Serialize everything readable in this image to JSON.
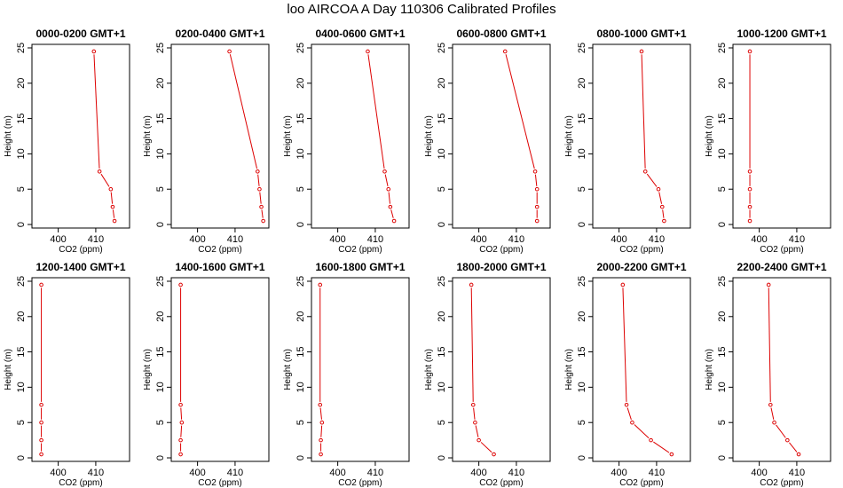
{
  "title": "loo AIRCOA A  Day 110306  Calibrated Profiles",
  "colors": {
    "series": "#dd0000",
    "axis": "#000000"
  },
  "chart_data": {
    "type": "line",
    "layout": "2 rows x 6 columns",
    "xlabel": "CO2 (ppm)",
    "ylabel": "Height (m)",
    "xlim": [
      393,
      419
    ],
    "ylim": [
      -0.5,
      25.5
    ],
    "x_ticks": [
      400,
      410
    ],
    "y_ticks": [
      0,
      5,
      10,
      15,
      20,
      25
    ],
    "heights": [
      0.5,
      2.5,
      5,
      7.5,
      24.5
    ],
    "panels": [
      {
        "title": "0000-0200 GMT+1",
        "x": [
          415.0,
          414.5,
          414.0,
          411.0,
          409.5
        ]
      },
      {
        "title": "0200-0400 GMT+1",
        "x": [
          417.5,
          417.0,
          416.5,
          416.0,
          408.5
        ]
      },
      {
        "title": "0400-0600 GMT+1",
        "x": [
          415.0,
          414.0,
          413.5,
          412.5,
          408.0
        ]
      },
      {
        "title": "0600-0800 GMT+1",
        "x": [
          415.5,
          415.5,
          415.5,
          415.0,
          407.0
        ]
      },
      {
        "title": "0800-1000 GMT+1",
        "x": [
          412.0,
          411.5,
          410.5,
          407.0,
          406.0
        ]
      },
      {
        "title": "1000-1200 GMT+1",
        "x": [
          397.5,
          397.5,
          397.5,
          397.5,
          397.5
        ]
      },
      {
        "title": "1200-1400 GMT+1",
        "x": [
          395.5,
          395.5,
          395.5,
          395.5,
          395.5
        ]
      },
      {
        "title": "1400-1600 GMT+1",
        "x": [
          395.5,
          395.5,
          395.8,
          395.5,
          395.5
        ]
      },
      {
        "title": "1600-1800 GMT+1",
        "x": [
          395.5,
          395.5,
          395.8,
          395.3,
          395.3
        ]
      },
      {
        "title": "1800-2000 GMT+1",
        "x": [
          404.0,
          400.0,
          399.0,
          398.5,
          398.0
        ]
      },
      {
        "title": "2000-2200 GMT+1",
        "x": [
          414.0,
          408.5,
          403.5,
          402.0,
          401.0
        ]
      },
      {
        "title": "2200-2400 GMT+1",
        "x": [
          410.5,
          407.5,
          404.0,
          403.0,
          402.5
        ]
      }
    ]
  }
}
